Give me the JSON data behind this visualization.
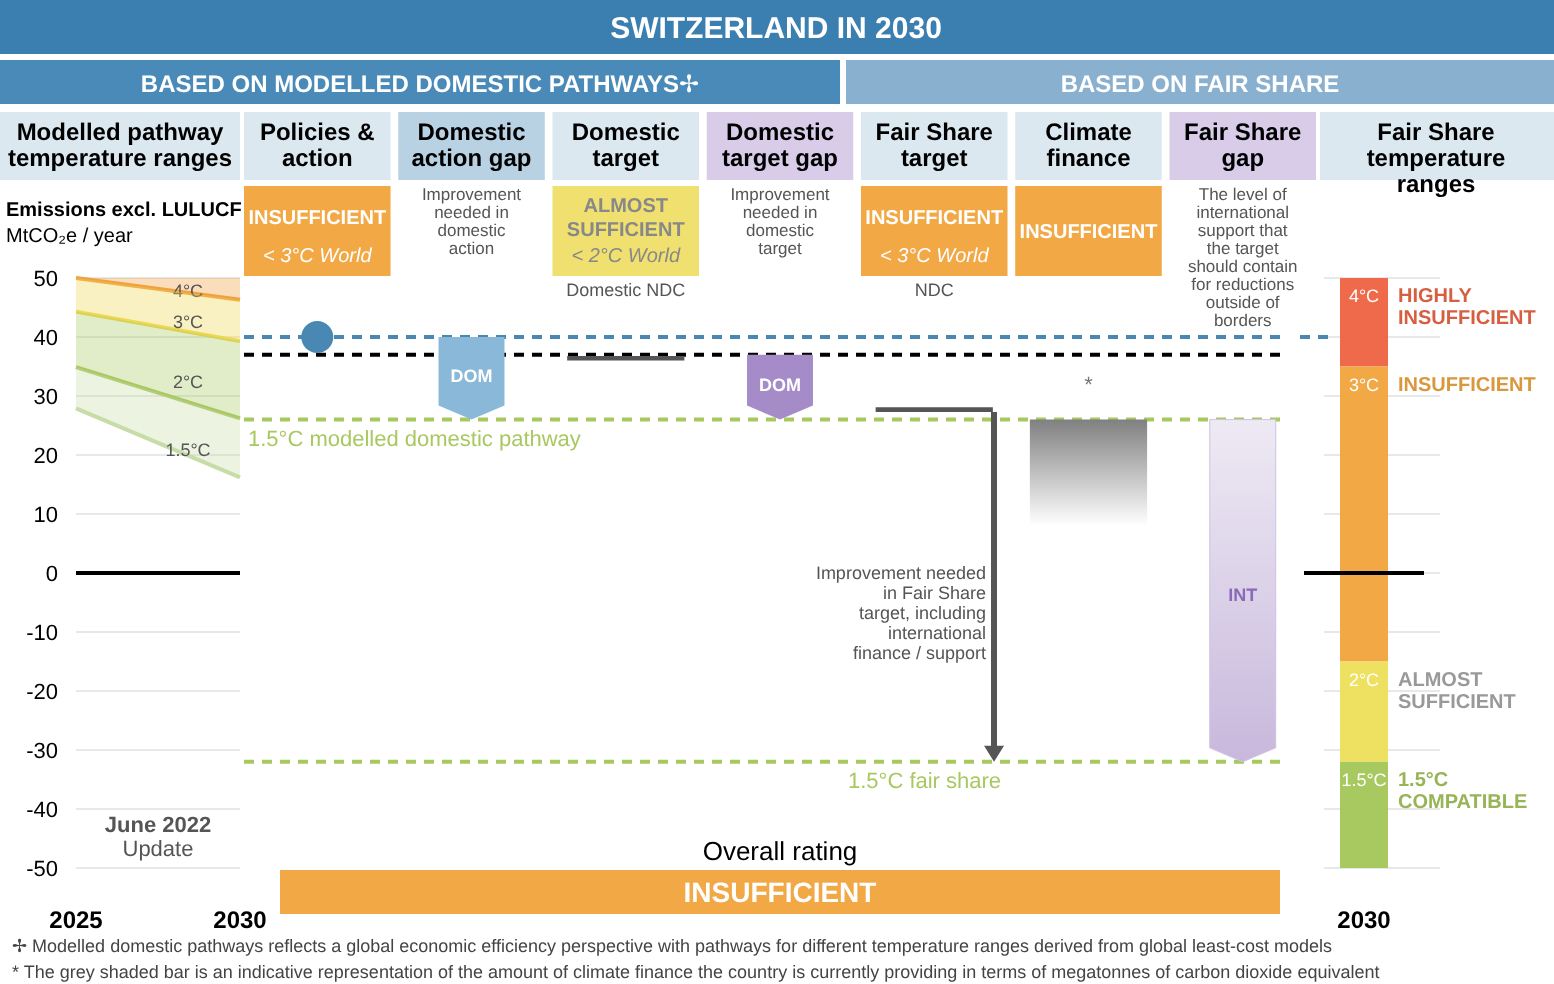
{
  "chart_data": [
    {
      "type": "line",
      "title": "Modelled pathway temperature ranges",
      "ylabel": "Emissions excl. LULUCF\nMtCO₂e / year",
      "x": [
        2025,
        2030
      ],
      "xlim": [
        2025,
        2030
      ],
      "xticks": [
        2025,
        2030
      ],
      "ylim": [
        -50,
        50
      ],
      "yticks": [
        -50,
        -40,
        -30,
        -20,
        -10,
        0,
        10,
        20,
        30,
        40,
        50
      ],
      "grid": "y",
      "series": [
        {
          "name": "4°C",
          "color": "#f0a040",
          "values": [
            50,
            46.3
          ],
          "lower": [
            50,
            46.3
          ],
          "upper": [
            50,
            50
          ]
        },
        {
          "name": "3°C",
          "color": "#eed850",
          "values": [
            44.3,
            39.3
          ],
          "lower": [
            44.3,
            39.3
          ],
          "upper": [
            50,
            46.3
          ]
        },
        {
          "name": "2°C",
          "color": "#a8c860",
          "values": [
            34.9,
            26.2
          ],
          "lower": [
            34.9,
            26.2
          ],
          "upper": [
            44.3,
            39.3
          ]
        },
        {
          "name": "1.5°C",
          "color": "#c8dca8",
          "values": [
            27.9,
            16.2
          ],
          "lower": [
            27.9,
            16.2
          ],
          "upper": [
            34.9,
            26.2
          ]
        }
      ],
      "ref_lines": [
        {
          "axis": "y",
          "value": 0,
          "color": "#000000"
        }
      ],
      "annotations": [
        "June 2022",
        "Update"
      ]
    },
    {
      "type": "bar",
      "title": "SWITZERLAND IN 2030",
      "categories": [
        "Policies & action",
        "Domestic action gap",
        "Domestic target",
        "Domestic target gap",
        "Fair Share target",
        "Climate finance",
        "Fair Share gap"
      ],
      "ylim": [
        -50,
        50
      ],
      "tick_labels": "x",
      "series": [
        {
          "type": "scatter",
          "color": "#4a88b4",
          "marker": "circle",
          "values": [
            40,
            null,
            null,
            null,
            null,
            null,
            null
          ]
        },
        {
          "type": "bar",
          "colors": [
            null,
            "#8ab8d8",
            null,
            "#a58cc8",
            null,
            "#909090",
            "#cfc2e2"
          ],
          "base": [
            null,
            40,
            null,
            37,
            null,
            26,
            26
          ],
          "values": [
            null,
            -14,
            null,
            -11,
            null,
            -18,
            -58
          ]
        },
        {
          "type": "bar",
          "color": "#555555",
          "base": [
            null,
            null,
            36,
            null,
            27.3,
            null,
            null
          ],
          "values": [
            null,
            null,
            0.8,
            null,
            0.8,
            null,
            null
          ]
        }
      ],
      "ref_lines": [
        {
          "axis": "y",
          "value": 40,
          "color": "#4a88b4",
          "line_style": "dashed"
        },
        {
          "axis": "y",
          "value": 37,
          "color": "#000000",
          "line_style": "dashed"
        },
        {
          "axis": "y",
          "value": 26,
          "color": "#a8c860",
          "line_style": "dashed",
          "label": "1.5°C modelled domestic pathway"
        },
        {
          "axis": "y",
          "value": -32,
          "color": "#a8c860",
          "line_style": "dashed",
          "label": "1.5°C fair share"
        }
      ],
      "annotations": [
        "BASED ON MODELLED DOMESTIC PATHWAYS✢",
        "BASED ON FAIR SHARE",
        "INSUFFICIENT",
        "< 3°C World",
        "Improvement needed in domestic action",
        "ALMOST SUFFICIENT",
        "< 2°C World",
        "Domestic NDC",
        "Improvement needed in domestic target",
        "INSUFFICIENT",
        "< 3°C World",
        "NDC",
        "INSUFFICIENT",
        "The level of international support that the target should contain for reductions outside of borders",
        "DOM",
        "DOM",
        "INT",
        "*",
        "Improvement needed in Fair Share target, including international finance /  support",
        "Overall rating",
        "INSUFFICIENT",
        "✢ Modelled domestic pathways reflects a global economic efficiency perspective with pathways for different temperature ranges derived from global least-cost models",
        "* The grey shaded bar is an indicative representation of the amount of climate finance the country is currently providing in terms of megatonnes of carbon dioxide equivalent"
      ]
    },
    {
      "type": "bar",
      "title": "Fair Share temperature ranges",
      "categories": [
        "2030"
      ],
      "ylim": [
        -50,
        50
      ],
      "tick_labels": "x",
      "grid": "y",
      "series": [
        {
          "name": "4°C",
          "color": "#ee6a4a",
          "base": [
            35
          ],
          "values": [
            15
          ]
        },
        {
          "name": "3°C",
          "color": "#f2a845",
          "base": [
            -15
          ],
          "values": [
            50
          ]
        },
        {
          "name": "2°C",
          "color": "#eee060",
          "base": [
            -32
          ],
          "values": [
            17
          ]
        },
        {
          "name": "1.5°C",
          "color": "#a8c860",
          "base": [
            -50
          ],
          "values": [
            18
          ]
        }
      ],
      "ref_lines": [
        {
          "axis": "y",
          "value": 40,
          "color": "#4a88b4",
          "line_style": "dashed"
        },
        {
          "axis": "y",
          "value": 0,
          "color": "#000000"
        }
      ],
      "annotations": [
        "HIGHLY INSUFFICIENT",
        "INSUFFICIENT",
        "ALMOST SUFFICIENT",
        "1.5°C COMPATIBLE"
      ]
    }
  ]
}
